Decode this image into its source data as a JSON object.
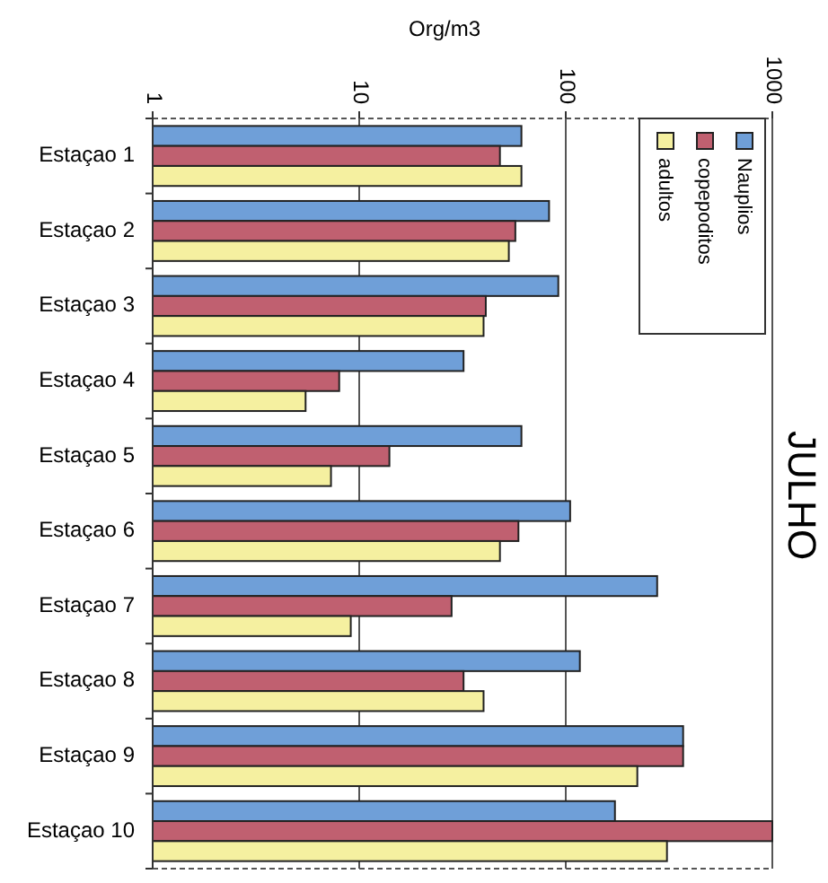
{
  "chart_data": {
    "type": "bar",
    "orientation": "horizontal",
    "title": "JULHO",
    "xlabel": "Org/m3",
    "log": "x",
    "categories": [
      "Estaçao 1",
      "Estaçao 2",
      "Estaçao 3",
      "Estaçao 4",
      "Estaçao 5",
      "Estaçao 6",
      "Estaçao 7",
      "Estaçao 8",
      "Estaçao 9",
      "Estaçao 10"
    ],
    "series": [
      {
        "name": "Nauplios",
        "color": "#6f9fd8",
        "values": [
          61,
          83,
          92,
          32,
          61,
          105,
          277,
          117,
          370,
          173
        ]
      },
      {
        "name": "copepoditos",
        "color": "#c06070",
        "values": [
          48,
          57,
          41,
          8,
          14,
          59,
          28,
          32,
          370,
          1000
        ]
      },
      {
        "name": "adultos",
        "color": "#f5f0a0",
        "values": [
          61,
          53,
          40,
          5.5,
          7.3,
          48,
          9.1,
          40,
          222,
          309
        ]
      }
    ],
    "xlim": [
      1,
      1000
    ],
    "xticks": [
      1,
      10,
      100,
      1000
    ],
    "grid": "x",
    "legend": "top right"
  }
}
